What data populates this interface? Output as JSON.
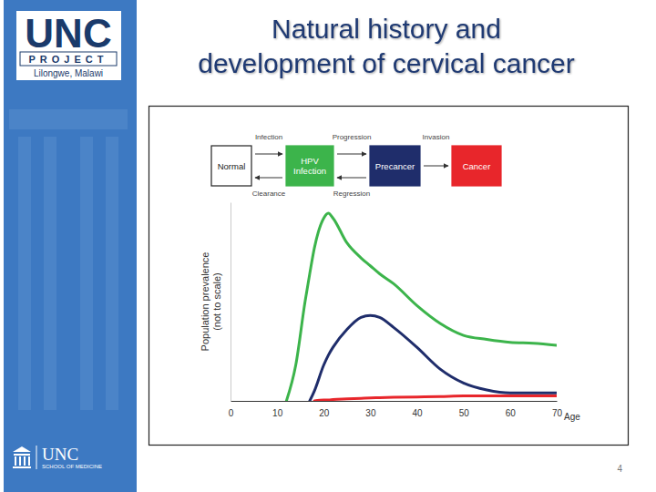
{
  "slide": {
    "title": [
      "Natural history and",
      "development of cervical cancer"
    ],
    "logo": {
      "name": "UNC",
      "subtitle": "PROJECT",
      "location": "Lilongwe, Malawi"
    },
    "footer": {
      "name": "UNC",
      "school": "SCHOOL OF MEDICINE"
    },
    "page_number": 4
  },
  "chart_data": {
    "type": "line",
    "xlabel": "Age",
    "ylabel": [
      "Population prevalence",
      "(not to scale)"
    ],
    "diagram": {
      "start": "Normal",
      "forward_arrows": [
        "Infection",
        "Progression",
        "Invasion"
      ],
      "backward_arrows": [
        "Clearance",
        "Regression"
      ]
    },
    "x": [
      12,
      14,
      16,
      17,
      18,
      20,
      21,
      22,
      25,
      28,
      30,
      32,
      35,
      40,
      45,
      50,
      55,
      60,
      65,
      70
    ],
    "series": [
      {
        "name": "HPV Infection",
        "color": "#3cb44b",
        "values": [
          0,
          18,
          50,
          64,
          77,
          92,
          94.5,
          92,
          79.5,
          72,
          68,
          64,
          59,
          48,
          39,
          33,
          31,
          29.5,
          29,
          28
        ]
      },
      {
        "name": "Precancer",
        "color": "#1f2d6b",
        "values": [
          null,
          null,
          null,
          0,
          5,
          18,
          23,
          27,
          36,
          42,
          43,
          42,
          37,
          27,
          16,
          9,
          5.5,
          4,
          4,
          4
        ]
      },
      {
        "name": "Cancer",
        "color": "#e8262b",
        "values": [
          null,
          null,
          null,
          null,
          0,
          0.5,
          0.5,
          0.7,
          1,
          1.3,
          1.5,
          1.6,
          1.8,
          2,
          2.2,
          2.5,
          2.5,
          2.5,
          2.5,
          2.5
        ]
      }
    ],
    "xlim": [
      0,
      70
    ],
    "xticks": [
      0,
      10,
      20,
      30,
      40,
      50,
      60,
      70
    ],
    "ylim": [
      0,
      100
    ],
    "yticks": [],
    "grid": false,
    "tick_labels": "x"
  }
}
